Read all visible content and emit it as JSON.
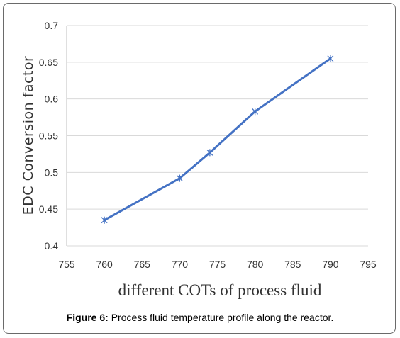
{
  "caption": {
    "label": "Figure 6:",
    "text": "Process fluid temperature profile along the reactor."
  },
  "chart_data": {
    "type": "line",
    "title": "",
    "xlabel": "different COTs of process fluid",
    "ylabel": "EDC Conversion factor",
    "xlim": [
      755,
      795
    ],
    "ylim": [
      0.4,
      0.7
    ],
    "xticks": [
      "755",
      "760",
      "765",
      "770",
      "775",
      "780",
      "785",
      "790",
      "795"
    ],
    "yticks": [
      "0.4",
      "0.45",
      "0.5",
      "0.55",
      "0.6",
      "0.65",
      "0.7"
    ],
    "grid": "horizontal",
    "legend": "none",
    "series": [
      {
        "color": "#4472c4",
        "marker": "asterisk",
        "x": [
          760,
          770,
          774,
          780,
          790
        ],
        "y": [
          0.435,
          0.492,
          0.527,
          0.583,
          0.655
        ]
      }
    ]
  }
}
